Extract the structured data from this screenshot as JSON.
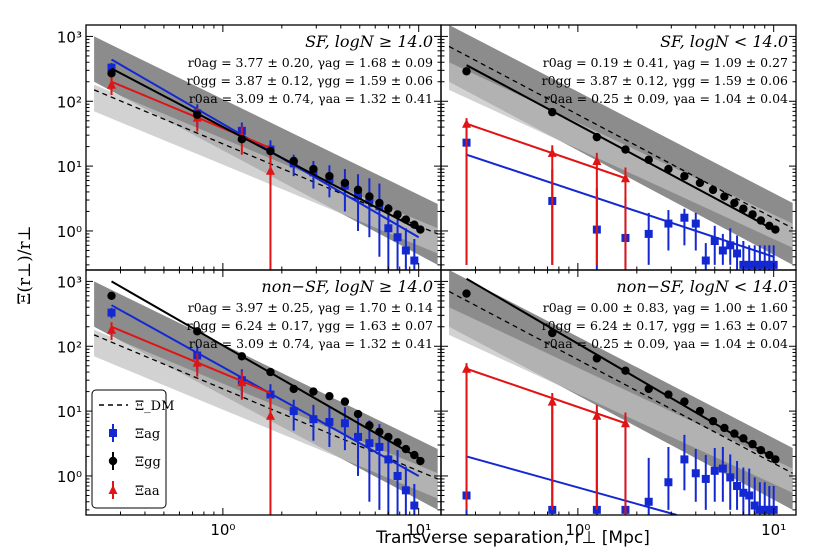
{
  "figure": {
    "ylabel": "Ξ(r⊥)/r⊥",
    "xlabel": "Transverse separation, r⊥ [Mpc]",
    "x_tick_labels": [
      "10⁰",
      "10¹"
    ],
    "y_tick_labels": [
      "10⁰",
      "10¹",
      "10²",
      "10³"
    ],
    "legend": {
      "dm": "Ξ_DM",
      "ag": "Ξag",
      "gg": "Ξgg",
      "aa": "Ξaa"
    }
  },
  "colors": {
    "ag": "#1428d2",
    "gg": "#000000",
    "aa": "#e01414",
    "dm": "#000000",
    "band_dark": "#8c8c8c",
    "band_light": "#d2d2d2"
  },
  "chart_data": [
    {
      "type": "scatter",
      "panel": "top-left",
      "title": "SF, logN ≥ 14.0",
      "annotations": [
        "r0ag = 3.77 ± 0.20, γag = 1.68 ± 0.09",
        "r0gg = 3.87 ± 0.12, γgg = 1.59 ± 0.06",
        "r0aa = 3.09 ± 0.74, γaa = 1.32 ± 0.41"
      ],
      "xscale": "log",
      "yscale": "log",
      "xlim": [
        0.2,
        13
      ],
      "ylim": [
        0.25,
        1500
      ],
      "series": [
        {
          "name": "Ξag",
          "x": [
            0.27,
            0.74,
            1.25,
            1.75,
            2.3,
            2.9,
            3.5,
            4.2,
            4.9,
            5.6,
            6.3,
            7.0,
            7.8,
            8.6,
            9.5
          ],
          "y": [
            330,
            65,
            35,
            18,
            11,
            8.0,
            6.3,
            5.0,
            3.5,
            3.0,
            2.4,
            1.1,
            0.8,
            0.5,
            0.35
          ],
          "yerr": [
            [
              50,
              25,
              12,
              7,
              4,
              3.5,
              3.0,
              3.0,
              2.5,
              2.2,
              2.0,
              0.9,
              0.75,
              0.45,
              0.3
            ],
            [
              60,
              25,
              12,
              7,
              4,
              4,
              4,
              4,
              4,
              3.5,
              3.0,
              1.5,
              1.0,
              0.6,
              0.4
            ]
          ],
          "fit": {
            "x": [
              0.27,
              10
            ],
            "y": [
              440,
              0.8
            ]
          }
        },
        {
          "name": "Ξgg",
          "x": [
            0.27,
            0.74,
            1.25,
            1.75,
            2.3,
            2.9,
            3.5,
            4.2,
            4.9,
            5.6,
            6.3,
            7.0,
            7.8,
            8.6,
            9.5,
            10.2
          ],
          "y": [
            270,
            62,
            26,
            17,
            12,
            9.0,
            7.0,
            5.5,
            4.3,
            3.4,
            2.7,
            2.2,
            1.8,
            1.5,
            1.25,
            1.05
          ],
          "fit": {
            "x": [
              0.27,
              10
            ],
            "y": [
              320,
              1.05
            ]
          }
        },
        {
          "name": "Ξaa",
          "x": [
            0.27,
            0.74,
            1.25,
            1.75
          ],
          "y": [
            180,
            56,
            28,
            8.5
          ],
          "yerr": [
            [
              55,
              22,
              13,
              8.3
            ],
            [
              55,
              22,
              13,
              8
            ]
          ],
          "fit": {
            "x": [
              0.27,
              1.75
            ],
            "y": [
              200,
              19
            ]
          }
        },
        {
          "name": "Ξ_DM",
          "x": [
            0.22,
            12.5
          ],
          "y": [
            150,
            0.9
          ]
        }
      ],
      "band_dark": {
        "x": [
          0.22,
          12.5
        ],
        "upper": [
          1000,
          2.6
        ],
        "lower": [
          200,
          0.3
        ]
      },
      "band_light": {
        "x": [
          0.22,
          12.5
        ],
        "upper": [
          180,
          1.1
        ],
        "lower": [
          70,
          0.45
        ]
      }
    },
    {
      "type": "scatter",
      "panel": "top-right",
      "title": "SF, logN < 14.0",
      "annotations": [
        "r0ag = 0.19 ± 0.41, γag = 1.09 ± 0.27",
        "r0gg = 3.87 ± 0.12, γgg = 1.59 ± 0.06",
        "r0aa = 0.25 ± 0.09, γaa = 1.04 ± 0.04"
      ],
      "xscale": "log",
      "yscale": "log",
      "xlim": [
        0.2,
        13
      ],
      "ylim": [
        0.25,
        1500
      ],
      "series": [
        {
          "name": "Ξag",
          "x": [
            0.27,
            0.74,
            1.25,
            1.75,
            2.3,
            2.9,
            3.5,
            4.0,
            4.5,
            5.0,
            5.5,
            6.0,
            6.5,
            7.0,
            7.5,
            8.0,
            8.5,
            9.0,
            9.5,
            10.0
          ],
          "y": [
            23,
            2.9,
            1.05,
            0.78,
            0.9,
            1.3,
            1.6,
            1.3,
            0.35,
            0.7,
            0.5,
            0.6,
            0.45,
            0.3,
            0.3,
            0.3,
            0.3,
            0.3,
            0.3,
            0.3
          ],
          "yerr": [
            [
              22.7,
              2.6,
              0.8,
              0.5,
              0.6,
              0.8,
              1.0,
              0.8,
              0.1,
              0.4,
              0.2,
              0.3,
              0.2,
              0.05,
              0.05,
              0.05,
              0.05,
              0.05,
              0.05,
              0.05
            ],
            [
              30,
              6.0,
              3.5,
              2.5,
              1.0,
              0.8,
              0.6,
              0.6,
              0.3,
              0.5,
              0.4,
              0.5,
              0.4,
              0.4,
              0.3,
              0.3,
              0.3,
              0.3,
              0.3,
              0.3
            ]
          ],
          "fit": {
            "x": [
              0.27,
              10
            ],
            "y": [
              15,
              0.4
            ]
          }
        },
        {
          "name": "Ξgg",
          "x": [
            0.27,
            0.74,
            1.25,
            1.75,
            2.3,
            2.9,
            3.5,
            4.2,
            4.9,
            5.6,
            6.3,
            7.0,
            7.8,
            8.6,
            9.5,
            10.2
          ],
          "y": [
            290,
            68,
            28,
            18,
            12.5,
            9.0,
            7.0,
            5.5,
            4.3,
            3.4,
            2.7,
            2.2,
            1.8,
            1.45,
            1.2,
            1.05
          ],
          "fit": {
            "x": [
              0.27,
              10
            ],
            "y": [
              360,
              1.05
            ]
          }
        },
        {
          "name": "Ξaa",
          "x": [
            0.27,
            0.74,
            1.25,
            1.75
          ],
          "y": [
            45,
            16,
            12,
            6.5
          ],
          "yerr": [
            [
              44.7,
              15.7,
              11.7,
              6.3
            ],
            [
              10,
              5,
              4,
              3
            ]
          ],
          "fit": {
            "x": [
              0.27,
              1.75
            ],
            "y": [
              45,
              6.5
            ]
          }
        },
        {
          "name": "Ξ_DM",
          "x": [
            0.22,
            12.5
          ],
          "y": [
            700,
            1.1
          ]
        }
      ],
      "band_dark": {
        "x": [
          0.22,
          12.5
        ],
        "upper": [
          1500,
          2.7
        ],
        "lower": [
          200,
          0.3
        ]
      },
      "band_light": {
        "x": [
          0.22,
          12.5
        ],
        "upper": [
          400,
          1.3
        ],
        "lower": [
          150,
          0.55
        ]
      }
    },
    {
      "type": "scatter",
      "panel": "bottom-left",
      "title": "non−SF, logN ≥ 14.0",
      "annotations": [
        "r0ag = 3.97 ± 0.25, γag = 1.70 ± 0.14",
        "r0gg = 6.24 ± 0.17, γgg = 1.63 ± 0.07",
        "r0aa = 3.09 ± 0.74, γaa = 1.32 ± 0.41"
      ],
      "xscale": "log",
      "yscale": "log",
      "xlim": [
        0.2,
        13
      ],
      "ylim": [
        0.25,
        1500
      ],
      "series": [
        {
          "name": "Ξag",
          "x": [
            0.27,
            0.74,
            1.25,
            1.75,
            2.3,
            2.9,
            3.5,
            4.2,
            4.9,
            5.6,
            6.3,
            7.0,
            7.8,
            8.6,
            9.5
          ],
          "y": [
            330,
            72,
            30,
            18,
            10,
            7.5,
            6.8,
            6.5,
            4.0,
            3.2,
            2.8,
            1.8,
            1.0,
            0.6,
            0.35
          ],
          "yerr": [
            [
              60,
              30,
              14,
              8,
              5,
              4,
              4,
              4,
              3,
              2.8,
              2.5,
              1.6,
              0.9,
              0.55,
              0.3
            ],
            [
              60,
              30,
              14,
              8,
              5,
              5,
              5,
              5,
              4,
              4,
              3.5,
              2.5,
              1.5,
              0.8,
              0.4
            ]
          ],
          "fit": {
            "x": [
              0.27,
              10
            ],
            "y": [
              430,
              1.0
            ]
          }
        },
        {
          "name": "Ξgg",
          "x": [
            0.27,
            0.74,
            1.25,
            1.75,
            2.3,
            2.9,
            3.5,
            4.2,
            4.9,
            5.6,
            6.3,
            7.0,
            7.8,
            8.6,
            9.5,
            10.2
          ],
          "y": [
            600,
            170,
            70,
            40,
            22,
            20,
            17,
            14,
            9.0,
            6.0,
            4.8,
            4.0,
            3.3,
            2.6,
            2.1,
            1.7
          ],
          "fit": {
            "x": [
              0.27,
              10
            ],
            "y": [
              1000,
              1.9
            ]
          }
        },
        {
          "name": "Ξaa",
          "x": [
            0.27,
            0.74,
            1.25,
            1.75
          ],
          "y": [
            180,
            56,
            28,
            8.5
          ],
          "yerr": [
            [
              55,
              22,
              13,
              8.3
            ],
            [
              55,
              22,
              13,
              8
            ]
          ],
          "fit": {
            "x": [
              0.27,
              1.75
            ],
            "y": [
              200,
              19
            ]
          }
        },
        {
          "name": "Ξ_DM",
          "x": [
            0.22,
            12.5
          ],
          "y": [
            150,
            0.9
          ]
        }
      ],
      "band_dark": {
        "x": [
          0.22,
          12.5
        ],
        "upper": [
          1000,
          2.6
        ],
        "lower": [
          200,
          0.3
        ]
      },
      "band_light": {
        "x": [
          0.22,
          12.5
        ],
        "upper": [
          180,
          1.1
        ],
        "lower": [
          70,
          0.45
        ]
      }
    },
    {
      "type": "scatter",
      "panel": "bottom-right",
      "title": "non−SF, logN < 14.0",
      "annotations": [
        "r0ag = 0.00 ± 0.83, γag = 1.00 ± 1.60",
        "r0gg = 6.24 ± 0.17, γgg = 1.63 ± 0.07",
        "r0aa = 0.25 ± 0.09, γaa = 1.04 ± 0.04"
      ],
      "xscale": "log",
      "yscale": "log",
      "xlim": [
        0.2,
        13
      ],
      "ylim": [
        0.25,
        1500
      ],
      "series": [
        {
          "name": "Ξag",
          "x": [
            0.27,
            0.74,
            1.25,
            1.75,
            2.3,
            2.9,
            3.5,
            4.0,
            4.5,
            5.0,
            5.5,
            6.0,
            6.5,
            7.0,
            7.5,
            8.0,
            8.5,
            9.0,
            9.5,
            10.0
          ],
          "y": [
            0.5,
            0.3,
            0.3,
            0.3,
            0.4,
            0.8,
            1.8,
            1.1,
            0.9,
            1.2,
            1.3,
            0.95,
            0.7,
            0.55,
            0.5,
            0.35,
            0.3,
            0.3,
            0.3,
            0.3
          ],
          "yerr": [
            [
              0.25,
              0.05,
              0.05,
              0.05,
              0.15,
              0.5,
              1.2,
              0.7,
              0.6,
              0.8,
              0.9,
              0.65,
              0.4,
              0.3,
              0.25,
              0.1,
              0.05,
              0.05,
              0.05,
              0.05
            ],
            [
              40,
              15,
              10,
              8,
              1.5,
              2.0,
              2.5,
              1.5,
              1.2,
              1.5,
              1.5,
              1.2,
              1.0,
              0.8,
              0.8,
              0.6,
              0.5,
              0.5,
              0.4,
              0.4
            ]
          ],
          "fit": {
            "x": [
              0.27,
              3.2
            ],
            "y": [
              2.0,
              0.25
            ]
          }
        },
        {
          "name": "Ξgg",
          "x": [
            0.27,
            0.74,
            1.25,
            1.75,
            2.3,
            2.9,
            3.5,
            4.2,
            4.9,
            5.6,
            6.3,
            7.0,
            7.8,
            8.6,
            9.5,
            10.2
          ],
          "y": [
            650,
            160,
            65,
            42,
            22,
            18,
            14,
            10,
            7.0,
            5.5,
            4.5,
            3.8,
            3.1,
            2.5,
            2.1,
            1.8
          ],
          "fit": {
            "x": [
              0.27,
              10
            ],
            "y": [
              1100,
              1.9
            ]
          }
        },
        {
          "name": "Ξaa",
          "x": [
            0.27,
            0.74,
            1.25,
            1.75
          ],
          "y": [
            45,
            14,
            8.5,
            6.5
          ],
          "yerr": [
            [
              44.7,
              13.7,
              8.2,
              6.3
            ],
            [
              10,
              5,
              4,
              3
            ]
          ],
          "fit": {
            "x": [
              0.27,
              1.75
            ],
            "y": [
              45,
              6.5
            ]
          }
        },
        {
          "name": "Ξ_DM",
          "x": [
            0.22,
            12.5
          ],
          "y": [
            700,
            1.1
          ]
        }
      ],
      "band_dark": {
        "x": [
          0.22,
          12.5
        ],
        "upper": [
          1500,
          2.7
        ],
        "lower": [
          200,
          0.3
        ]
      },
      "band_light": {
        "x": [
          0.22,
          12.5
        ],
        "upper": [
          400,
          1.3
        ],
        "lower": [
          150,
          0.55
        ]
      }
    }
  ]
}
